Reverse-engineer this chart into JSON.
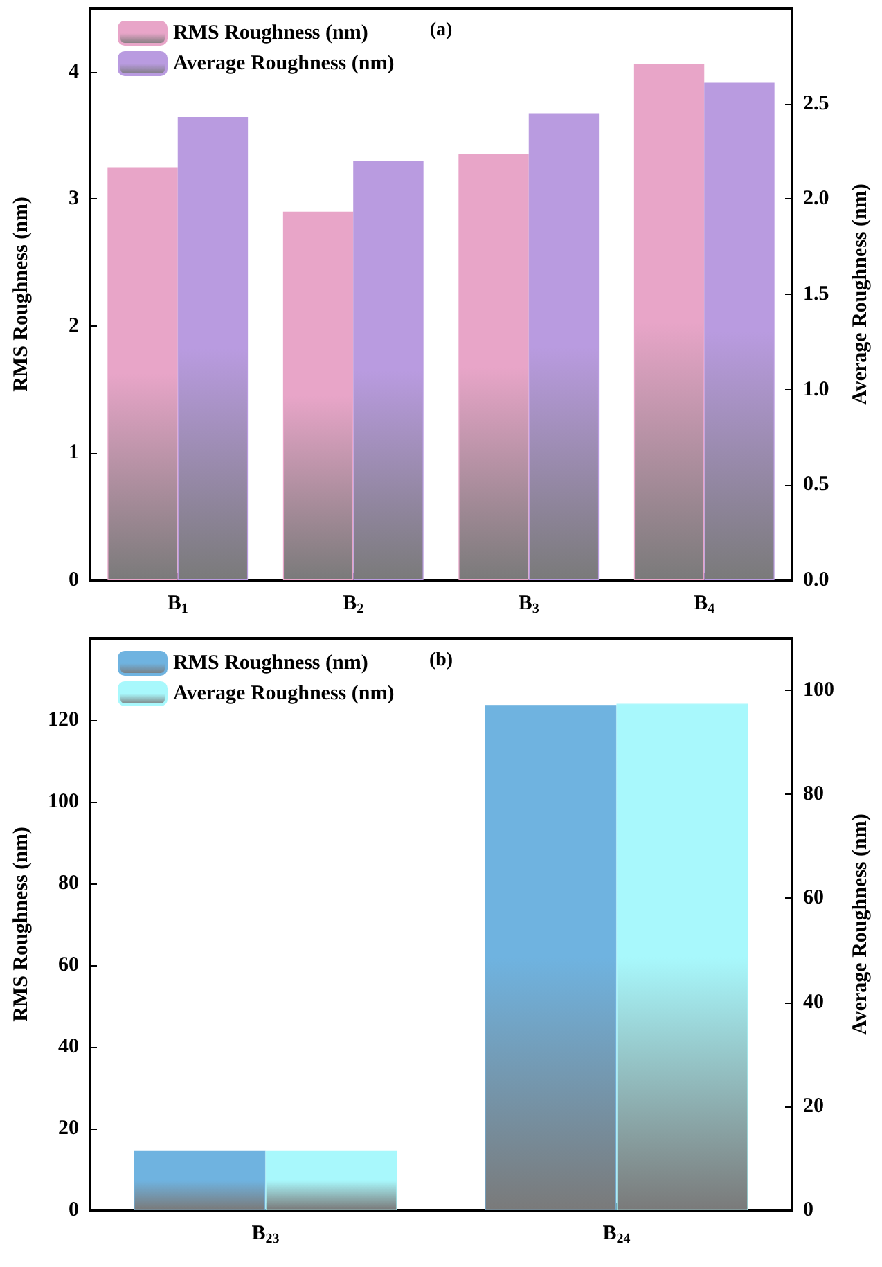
{
  "chart_data": [
    {
      "type": "bar",
      "title": "(a)",
      "ylabel": "RMS Roughness (nm)",
      "y2label": "Average Roughness (nm)",
      "categories": [
        "B$_{1}$",
        "B$_{2}$",
        "B$_{3}$",
        "B$_{4}$"
      ],
      "series": [
        {
          "name": "RMS Roughness (nm)",
          "color": "#e8a5c8",
          "values": [
            3.25,
            2.9,
            3.35,
            4.06
          ]
        },
        {
          "name": "Average Roughness (nm)",
          "color": "#b99be0",
          "axis": "y2",
          "values": [
            2.43,
            2.2,
            2.45,
            2.61
          ]
        }
      ],
      "ylim": [
        0,
        4.5
      ],
      "yticks": [
        0,
        1,
        2,
        3,
        4
      ],
      "y2lim": [
        0,
        3.0
      ],
      "y2ticks": [
        {
          "value": 0,
          "label": "0.0"
        },
        {
          "value": 0.5,
          "label": "0.5"
        },
        {
          "value": 1,
          "label": "1.0"
        },
        {
          "value": 1.5,
          "label": "1.5"
        },
        {
          "value": 2,
          "label": "2.0"
        },
        {
          "value": 2.5,
          "label": "2.5"
        }
      ],
      "grid": false,
      "legend": "top left"
    },
    {
      "type": "bar",
      "title": "(b)",
      "ylabel": "RMS Roughness (nm)",
      "y2label": "Average Roughness (nm)",
      "categories": [
        "B$_{23}$",
        "B$_{24}$"
      ],
      "series": [
        {
          "name": "RMS Roughness (nm)",
          "color": "#6fb3e0",
          "values": [
            14.6,
            123.7
          ]
        },
        {
          "name": "Average Roughness (nm)",
          "color": "#a8f8fc",
          "axis": "y2",
          "values": [
            11.5,
            97.4
          ]
        }
      ],
      "ylim": [
        0,
        140
      ],
      "yticks": [
        0,
        20,
        40,
        60,
        80,
        100,
        120
      ],
      "y2lim": [
        0,
        110
      ],
      "y2ticks": [
        0,
        20,
        40,
        60,
        80,
        100
      ],
      "grid": false,
      "legend": "top left"
    }
  ]
}
